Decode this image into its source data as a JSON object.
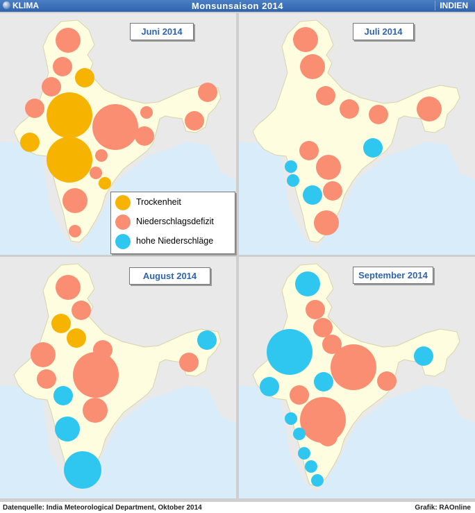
{
  "header": {
    "left_label": "KLIMA",
    "title": "Monsunsaison 2014",
    "right_label": "INDIEN",
    "logo_icon": "globe-icon"
  },
  "colors": {
    "trockenheit": "#f6b400",
    "defizit": "#fa8e72",
    "hoch": "#2fc7f0",
    "land": "#fffde0",
    "sea": "#d8ecfa",
    "neighbor": "#e9e9e9"
  },
  "legend": [
    {
      "label": "Trockenheit",
      "category": "trockenheit"
    },
    {
      "label": "Niederschlagsdefizit",
      "category": "defizit"
    },
    {
      "label": "hohe Niederschläge",
      "category": "hoch"
    }
  ],
  "panels": [
    {
      "title": "Juni 2014",
      "bubbles": [
        {
          "region": "Jammu & Kashmir",
          "category": "defizit",
          "size": 3
        },
        {
          "region": "Himachal Pradesh",
          "category": "defizit",
          "size": 2
        },
        {
          "region": "Uttarakhand",
          "category": "trockenheit",
          "size": 2
        },
        {
          "region": "Punjab/Haryana",
          "category": "defizit",
          "size": 2
        },
        {
          "region": "Gujarat",
          "category": "defizit",
          "size": 2
        },
        {
          "region": "Madhya Pradesh",
          "category": "trockenheit",
          "size": 5
        },
        {
          "region": "Uttar Pradesh/Bihar",
          "category": "defizit",
          "size": 5
        },
        {
          "region": "Sub-Himalayan West Bengal",
          "category": "defizit",
          "size": 1
        },
        {
          "region": "Jharkhand",
          "category": "defizit",
          "size": 2
        },
        {
          "region": "Arunachal Pradesh",
          "category": "defizit",
          "size": 2
        },
        {
          "region": "Northeast",
          "category": "defizit",
          "size": 2
        },
        {
          "region": "Konkan",
          "category": "trockenheit",
          "size": 2
        },
        {
          "region": "Maharashtra",
          "category": "trockenheit",
          "size": 5
        },
        {
          "region": "Odisha",
          "category": "defizit",
          "size": 1
        },
        {
          "region": "Telangana",
          "category": "defizit",
          "size": 1
        },
        {
          "region": "Andhra Pradesh",
          "category": "trockenheit",
          "size": 1
        },
        {
          "region": "Karnataka",
          "category": "defizit",
          "size": 3
        },
        {
          "region": "Kerala",
          "category": "defizit",
          "size": 1
        }
      ]
    },
    {
      "title": "Juli 2014",
      "bubbles": [
        {
          "region": "Jammu & Kashmir",
          "category": "defizit",
          "size": 3
        },
        {
          "region": "Himachal Pradesh",
          "category": "defizit",
          "size": 3
        },
        {
          "region": "Uttar Pradesh",
          "category": "defizit",
          "size": 2
        },
        {
          "region": "Bihar",
          "category": "defizit",
          "size": 2
        },
        {
          "region": "West Bengal",
          "category": "defizit",
          "size": 2
        },
        {
          "region": "Northeast",
          "category": "defizit",
          "size": 3
        },
        {
          "region": "Gujarat/Maharashtra",
          "category": "defizit",
          "size": 2
        },
        {
          "region": "Odisha",
          "category": "hoch",
          "size": 2
        },
        {
          "region": "Konkan",
          "category": "hoch",
          "size": 1
        },
        {
          "region": "Goa",
          "category": "hoch",
          "size": 1
        },
        {
          "region": "Telangana",
          "category": "defizit",
          "size": 3
        },
        {
          "region": "Andhra Pradesh",
          "category": "defizit",
          "size": 2
        },
        {
          "region": "Karnataka",
          "category": "hoch",
          "size": 2
        },
        {
          "region": "Tamil Nadu",
          "category": "defizit",
          "size": 3
        }
      ]
    },
    {
      "title": "August 2014",
      "bubbles": [
        {
          "region": "Jammu & Kashmir",
          "category": "defizit",
          "size": 3
        },
        {
          "region": "Haryana",
          "category": "defizit",
          "size": 2
        },
        {
          "region": "Rajasthan North",
          "category": "trockenheit",
          "size": 2
        },
        {
          "region": "Uttar Pradesh West",
          "category": "trockenheit",
          "size": 2
        },
        {
          "region": "Gujarat",
          "category": "defizit",
          "size": 3
        },
        {
          "region": "Saurashtra",
          "category": "defizit",
          "size": 2
        },
        {
          "region": "Madhya Pradesh",
          "category": "defizit",
          "size": 2
        },
        {
          "region": "Chhattisgarh/Odisha",
          "category": "defizit",
          "size": 5
        },
        {
          "region": "Arunachal Pradesh",
          "category": "hoch",
          "size": 2
        },
        {
          "region": "Northeast",
          "category": "defizit",
          "size": 2
        },
        {
          "region": "Maharashtra",
          "category": "hoch",
          "size": 2
        },
        {
          "region": "Telangana",
          "category": "defizit",
          "size": 3
        },
        {
          "region": "Karnataka",
          "category": "hoch",
          "size": 3
        },
        {
          "region": "Tamil Nadu/Kerala",
          "category": "hoch",
          "size": 4
        }
      ]
    },
    {
      "title": "September 2014",
      "bubbles": [
        {
          "region": "Jammu & Kashmir",
          "category": "hoch",
          "size": 3
        },
        {
          "region": "Himachal Pradesh",
          "category": "defizit",
          "size": 2
        },
        {
          "region": "Punjab/Haryana",
          "category": "defizit",
          "size": 2
        },
        {
          "region": "Uttar Pradesh West",
          "category": "defizit",
          "size": 2
        },
        {
          "region": "Rajasthan/Gujarat",
          "category": "hoch",
          "size": 5
        },
        {
          "region": "Bihar/Jharkhand",
          "category": "defizit",
          "size": 5
        },
        {
          "region": "Madhya Pradesh",
          "category": "hoch",
          "size": 2
        },
        {
          "region": "West Bengal",
          "category": "defizit",
          "size": 2
        },
        {
          "region": "Northeast",
          "category": "hoch",
          "size": 2
        },
        {
          "region": "Saurashtra",
          "category": "hoch",
          "size": 2
        },
        {
          "region": "Maharashtra",
          "category": "defizit",
          "size": 2
        },
        {
          "region": "Telangana/Andhra Pradesh",
          "category": "defizit",
          "size": 5
        },
        {
          "region": "Konkan",
          "category": "hoch",
          "size": 1
        },
        {
          "region": "Goa",
          "category": "hoch",
          "size": 1
        },
        {
          "region": "Rayalaseema",
          "category": "defizit",
          "size": 2
        },
        {
          "region": "Karnataka",
          "category": "hoch",
          "size": 1
        },
        {
          "region": "Tamil Nadu",
          "category": "hoch",
          "size": 1
        },
        {
          "region": "Kerala",
          "category": "hoch",
          "size": 1
        }
      ]
    }
  ],
  "footer": {
    "source": "Datenquelle:  India Meteorological Department, Oktober 2014",
    "credit": "Grafik: RAOnline"
  }
}
